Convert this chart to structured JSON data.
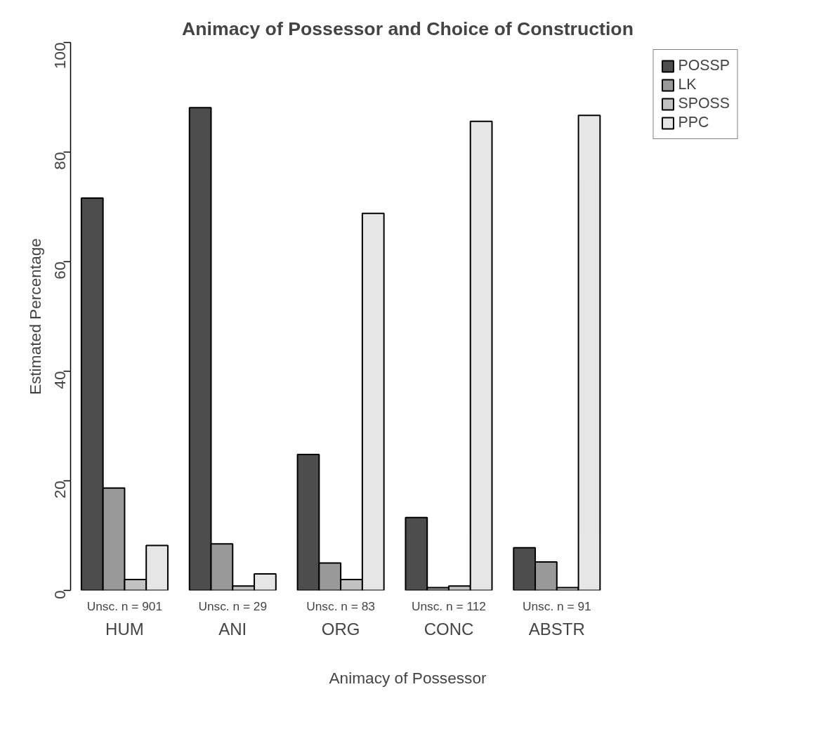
{
  "chart_data": {
    "type": "bar",
    "title": "Animacy of Possessor and Choice of Construction",
    "xlabel": "Animacy of Possessor",
    "ylabel": "Estimated Percentage",
    "categories": [
      "HUM",
      "ANI",
      "ORG",
      "CONC",
      "ABSTR"
    ],
    "series": [
      {
        "name": "POSSP",
        "color": "#4d4d4d",
        "values": [
          71.6,
          88.1,
          24.8,
          13.3,
          7.8
        ]
      },
      {
        "name": "LK",
        "color": "#999999",
        "values": [
          18.7,
          8.5,
          5.0,
          0.5,
          5.2
        ]
      },
      {
        "name": "SPOSS",
        "color": "#c2c2c2",
        "values": [
          2.0,
          0.8,
          2.0,
          0.8,
          0.5
        ]
      },
      {
        "name": "PPC",
        "color": "#e6e6e6",
        "values": [
          8.2,
          3.0,
          68.8,
          85.6,
          86.7
        ]
      }
    ],
    "annotations": [
      "Unsc. n = 901",
      "Unsc. n = 29",
      "Unsc. n = 83",
      "Unsc. n = 112",
      "Unsc. n = 91"
    ],
    "ylim": [
      0,
      100
    ],
    "yticks": [
      0,
      20,
      40,
      60,
      80,
      100
    ],
    "grid": false,
    "legend": "top right"
  }
}
